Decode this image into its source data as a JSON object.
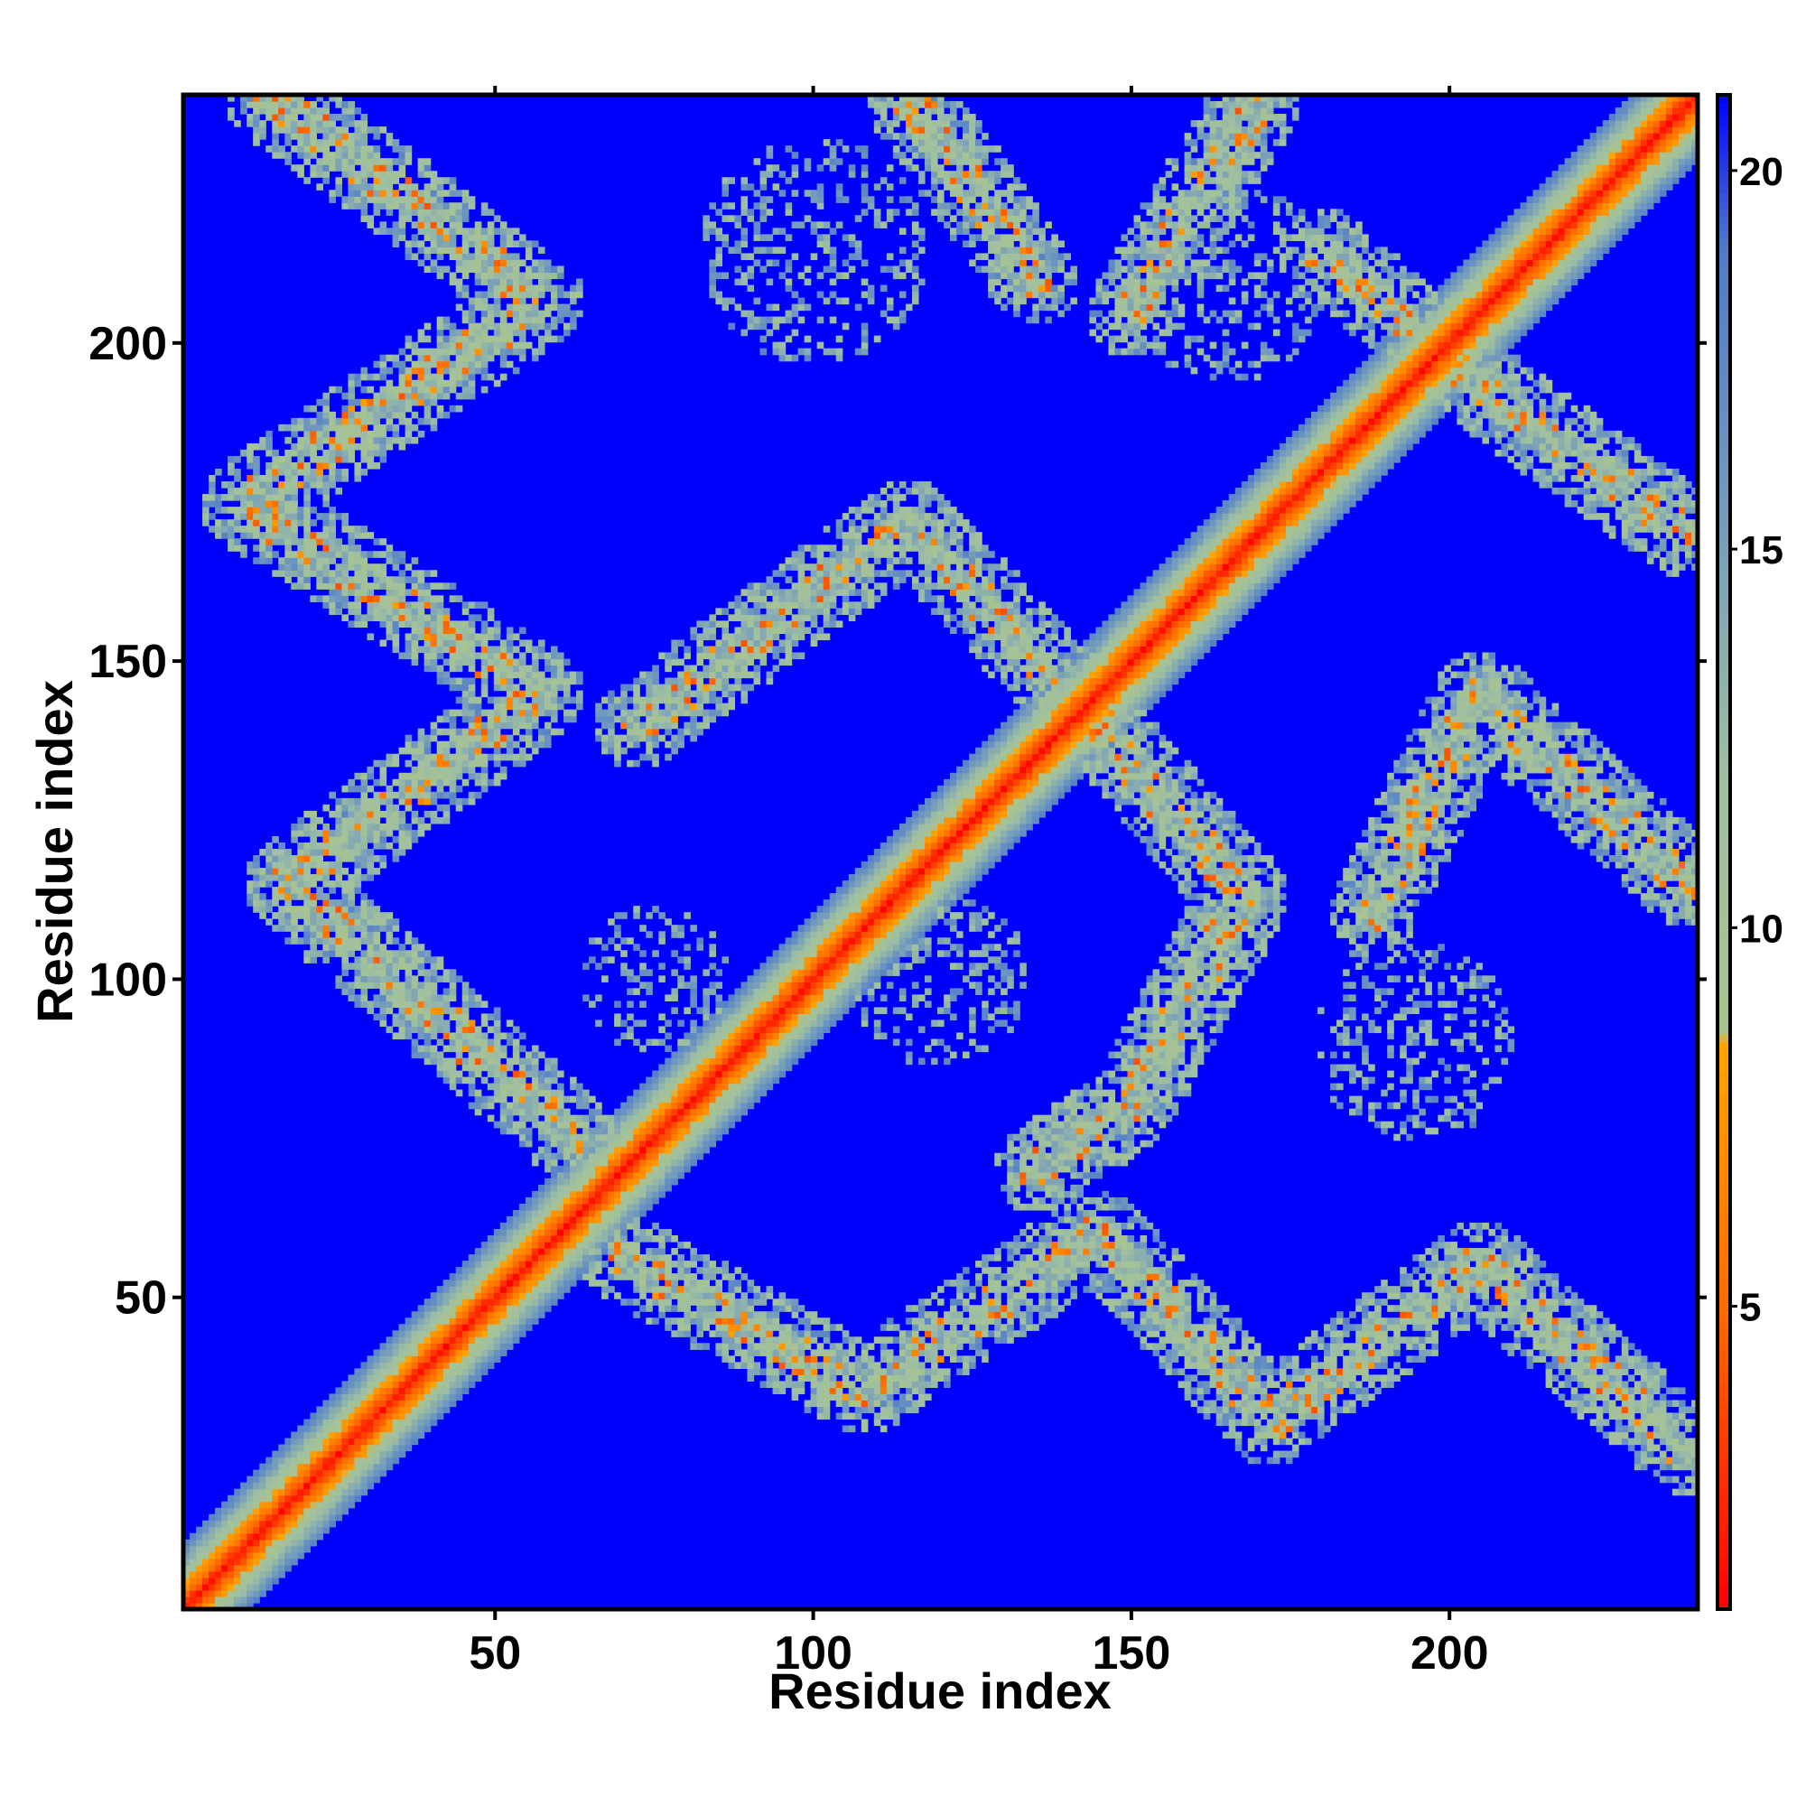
{
  "chart_data": {
    "type": "heatmap",
    "title": "",
    "xlabel": "Residue index",
    "ylabel": "Residue index",
    "n_residues": 239,
    "xlim": [
      1,
      239
    ],
    "ylim": [
      1,
      239
    ],
    "x_ticks": [
      {
        "value": 50,
        "label": "50"
      },
      {
        "value": 100,
        "label": "100"
      },
      {
        "value": 150,
        "label": "150"
      },
      {
        "value": 200,
        "label": "200"
      }
    ],
    "y_ticks": [
      {
        "value": 50,
        "label": "50"
      },
      {
        "value": 100,
        "label": "100"
      },
      {
        "value": 150,
        "label": "150"
      },
      {
        "value": 200,
        "label": "200"
      }
    ],
    "colorbar": {
      "range": [
        1,
        21
      ],
      "ticks": [
        {
          "value": 5,
          "label": "5"
        },
        {
          "value": 10,
          "label": "10"
        },
        {
          "value": 15,
          "label": "15"
        },
        {
          "value": 20,
          "label": "20"
        }
      ],
      "stops": [
        {
          "value": 1,
          "color": "#ff0000"
        },
        {
          "value": 5,
          "color": "#ff6a00"
        },
        {
          "value": 8.5,
          "color": "#ffa500"
        },
        {
          "value": 8.6,
          "color": "#a9c490"
        },
        {
          "value": 12,
          "color": "#9fbfa2"
        },
        {
          "value": 16,
          "color": "#6d96c0"
        },
        {
          "value": 19,
          "color": "#4f7ac8"
        },
        {
          "value": 21,
          "color": "#0000ff"
        }
      ]
    },
    "background_color": "#0000ff",
    "diagonal_band": {
      "half_width": 10
    },
    "contact_bands": [
      {
        "from": [
          14,
          239
        ],
        "to": [
          57,
          207
        ]
      },
      {
        "from": [
          57,
          207
        ],
        "to": [
          10,
          175
        ]
      },
      {
        "from": [
          10,
          175
        ],
        "to": [
          57,
          145
        ]
      },
      {
        "from": [
          57,
          145
        ],
        "to": [
          17,
          115
        ]
      },
      {
        "from": [
          17,
          115
        ],
        "to": [
          62,
          75
        ]
      },
      {
        "from": [
          72,
          140
        ],
        "to": [
          115,
          172
        ]
      },
      {
        "from": [
          115,
          172
        ],
        "to": [
          145,
          140
        ]
      },
      {
        "from": [
          145,
          140
        ],
        "to": [
          168,
          113
        ]
      },
      {
        "from": [
          168,
          113
        ],
        "to": [
          150,
          80
        ]
      },
      {
        "from": [
          150,
          80
        ],
        "to": [
          135,
          70
        ]
      },
      {
        "from": [
          115,
          239
        ],
        "to": [
          135,
          210
        ]
      },
      {
        "from": [
          70,
          56
        ],
        "to": [
          108,
          35
        ]
      },
      {
        "from": [
          108,
          35
        ],
        "to": [
          145,
          60
        ]
      },
      {
        "from": [
          145,
          60
        ],
        "to": [
          172,
          30
        ]
      },
      {
        "from": [
          172,
          30
        ],
        "to": [
          205,
          55
        ]
      },
      {
        "from": [
          205,
          55
        ],
        "to": [
          238,
          25
        ]
      },
      {
        "from": [
          150,
          205
        ],
        "to": [
          170,
          239
        ]
      },
      {
        "from": [
          180,
          215
        ],
        "to": [
          210,
          190
        ]
      },
      {
        "from": [
          210,
          190
        ],
        "to": [
          238,
          170
        ]
      },
      {
        "from": [
          205,
          145
        ],
        "to": [
          238,
          115
        ]
      },
      {
        "from": [
          205,
          145
        ],
        "to": [
          188,
          110
        ]
      }
    ],
    "sparse_regions": [
      {
        "center": [
          100,
          215
        ],
        "radius": 18
      },
      {
        "center": [
          165,
          210
        ],
        "radius": 16
      },
      {
        "center": [
          120,
          100
        ],
        "radius": 14
      },
      {
        "center": [
          195,
          90
        ],
        "radius": 16
      },
      {
        "center": [
          75,
          100
        ],
        "radius": 12
      }
    ]
  }
}
